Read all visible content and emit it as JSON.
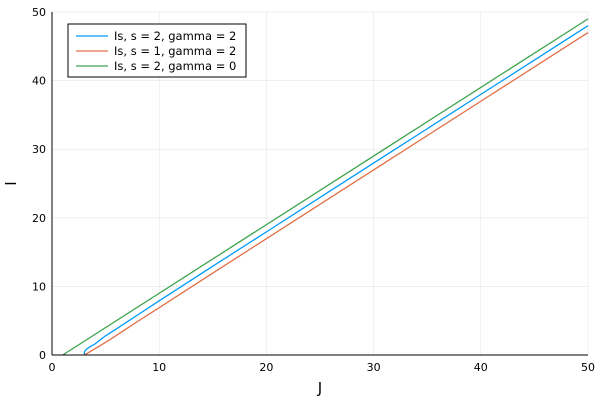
{
  "chart_data": {
    "type": "line",
    "xlabel": "J",
    "ylabel": "I",
    "xlim": [
      0,
      50
    ],
    "ylim": [
      0,
      50
    ],
    "xticks": [
      "0",
      "10",
      "20",
      "30",
      "40",
      "50"
    ],
    "yticks": [
      "0",
      "10",
      "20",
      "30",
      "40",
      "50"
    ],
    "grid": true,
    "legend_position": "top-left",
    "series": [
      {
        "name": "Is, s = 2, gamma = 2",
        "color": "#009AFA",
        "x": [
          3.0,
          3.02,
          3.1,
          3.3,
          3.6,
          4.0,
          5,
          6,
          8,
          10,
          15,
          20,
          25,
          30,
          35,
          40,
          45,
          50
        ],
        "y": [
          0.0,
          0.45,
          0.65,
          0.95,
          1.25,
          1.6,
          2.8,
          3.8,
          5.85,
          7.9,
          12.95,
          17.95,
          22.97,
          27.98,
          32.98,
          37.99,
          42.99,
          48.0
        ]
      },
      {
        "name": "Is, s = 1, gamma = 2",
        "color": "#E36F47",
        "x": [
          3.0,
          3.3,
          4,
          5,
          6,
          8,
          10,
          15,
          20,
          25,
          30,
          35,
          40,
          45,
          50
        ],
        "y": [
          0.0,
          0.25,
          0.9,
          1.85,
          2.85,
          4.9,
          6.9,
          11.95,
          16.95,
          21.97,
          26.98,
          31.98,
          36.99,
          41.99,
          47.0
        ]
      },
      {
        "name": "Is, s = 2, gamma = 0",
        "color": "#3EA44E",
        "x": [
          1,
          50
        ],
        "y": [
          0,
          49
        ]
      }
    ]
  }
}
